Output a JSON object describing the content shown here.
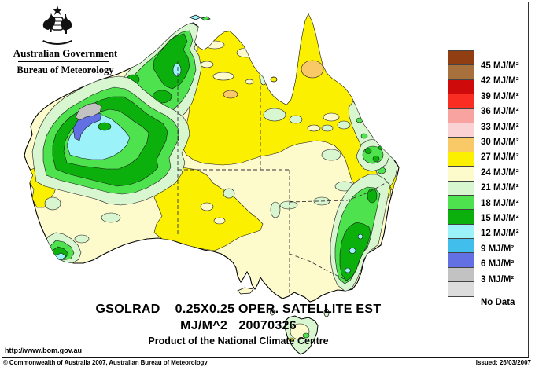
{
  "header": {
    "government": "Australian Government",
    "bureau": "Bureau of Meteorology"
  },
  "titles": {
    "line1": "GSOLRAD    0.25X0.25 OPER. SATELLITE EST",
    "line2": "MJ/M^2   20070326",
    "line3": "Product of the National Climate Centre"
  },
  "legend": {
    "items": [
      {
        "label": "45 MJ/M²",
        "color": "#913F12"
      },
      {
        "label": "42 MJ/M²",
        "color": "#A8703D"
      },
      {
        "label": "39 MJ/M²",
        "color": "#CE0A0A"
      },
      {
        "label": "36 MJ/M²",
        "color": "#F92D21"
      },
      {
        "label": "33 MJ/M²",
        "color": "#F9A3A0"
      },
      {
        "label": "30 MJ/M²",
        "color": "#FBD2D3"
      },
      {
        "label": "27 MJ/M²",
        "color": "#F9C967"
      },
      {
        "label": "24 MJ/M²",
        "color": "#FBF000"
      },
      {
        "label": "21 MJ/M²",
        "color": "#FDFACC"
      },
      {
        "label": "18 MJ/M²",
        "color": "#D8F6D0"
      },
      {
        "label": "15 MJ/M²",
        "color": "#4FE24F"
      },
      {
        "label": "12 MJ/M²",
        "color": "#0CB00C"
      },
      {
        "label": "9 MJ/M²",
        "color": "#9BF2F8"
      },
      {
        "label": "6 MJ/M²",
        "color": "#41BEEC"
      },
      {
        "label": "3 MJ/M²",
        "color": "#6370E3"
      },
      {
        "label": "",
        "color": "#C2C2C2"
      },
      {
        "label": "No Data",
        "color": "#DCDCDC"
      }
    ]
  },
  "footer": {
    "url": "http://www.bom.gov.au",
    "copyright": "© Commonwealth of Australia 2007, Australian Bureau of Meteorology",
    "issued": "Issued: 26/03/2007"
  },
  "palette": {
    "land": "#FDFACC",
    "yellow": "#FBF000",
    "orange": "#F9C967",
    "mint": "#D8F6D0",
    "lightgreen": "#4FE24F",
    "green": "#0CB00C",
    "cyan": "#9BF2F8",
    "blue": "#6370E3",
    "gray": "#C2C2C2",
    "ocean": "#FFFFFF"
  }
}
